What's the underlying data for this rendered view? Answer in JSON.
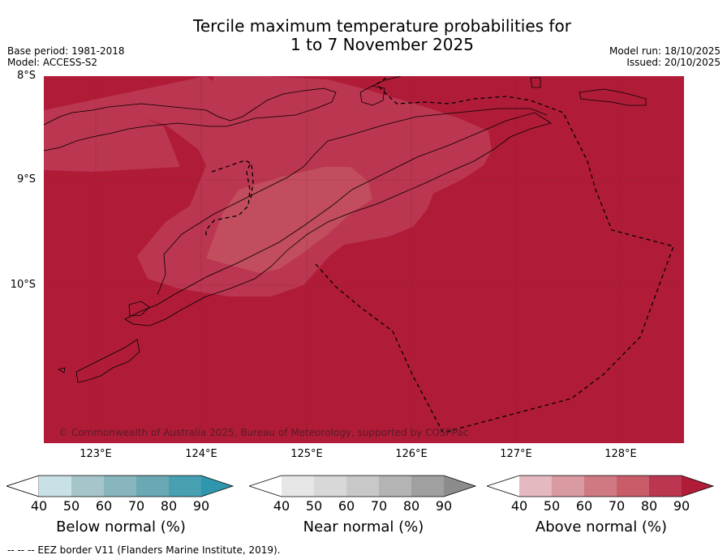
{
  "header": {
    "title_line1": "Tercile maximum temperature probabilities for",
    "title_line2": "1 to 7 November 2025",
    "base_period": "Base period: 1981-2018",
    "model": "Model: ACCESS-S2",
    "model_run": "Model run: 18/10/2025",
    "issued": "Issued: 20/10/2025"
  },
  "map": {
    "lat_labels": [
      "8°S",
      "9°S",
      "10°S"
    ],
    "lon_labels": [
      "123°E",
      "124°E",
      "125°E",
      "126°E",
      "127°E",
      "128°E"
    ],
    "copyright": "© Commonwealth of Australia 2025, Bureau of Meteorology, supported by COSPPac",
    "colors": {
      "p90": "#b01c38",
      "p80": "#bb3650",
      "p70": "#c14d5e",
      "coast": "#000000"
    }
  },
  "legend": {
    "ticks": [
      "40",
      "50",
      "60",
      "70",
      "80",
      "90"
    ],
    "below": {
      "title": "Below normal (%)",
      "colors": [
        "#c8e1e7",
        "#a6c5ca",
        "#88b6bf",
        "#6aa8b4",
        "#46a0b1",
        "#2e97ad"
      ]
    },
    "near": {
      "title": "Near normal (%)",
      "colors": [
        "#e6e6e6",
        "#d8d8d8",
        "#c8c8c8",
        "#b4b4b4",
        "#a0a0a0",
        "#8c8c8c"
      ]
    },
    "above": {
      "title": "Above normal (%)",
      "colors": [
        "#e4b9c0",
        "#d99aa2",
        "#cf7a82",
        "#c85c68",
        "#bb3650",
        "#b01c38"
      ]
    }
  },
  "footer": {
    "eez_note": "--  --  -- EEZ border V11 (Flanders Marine Institute, 2019)."
  }
}
